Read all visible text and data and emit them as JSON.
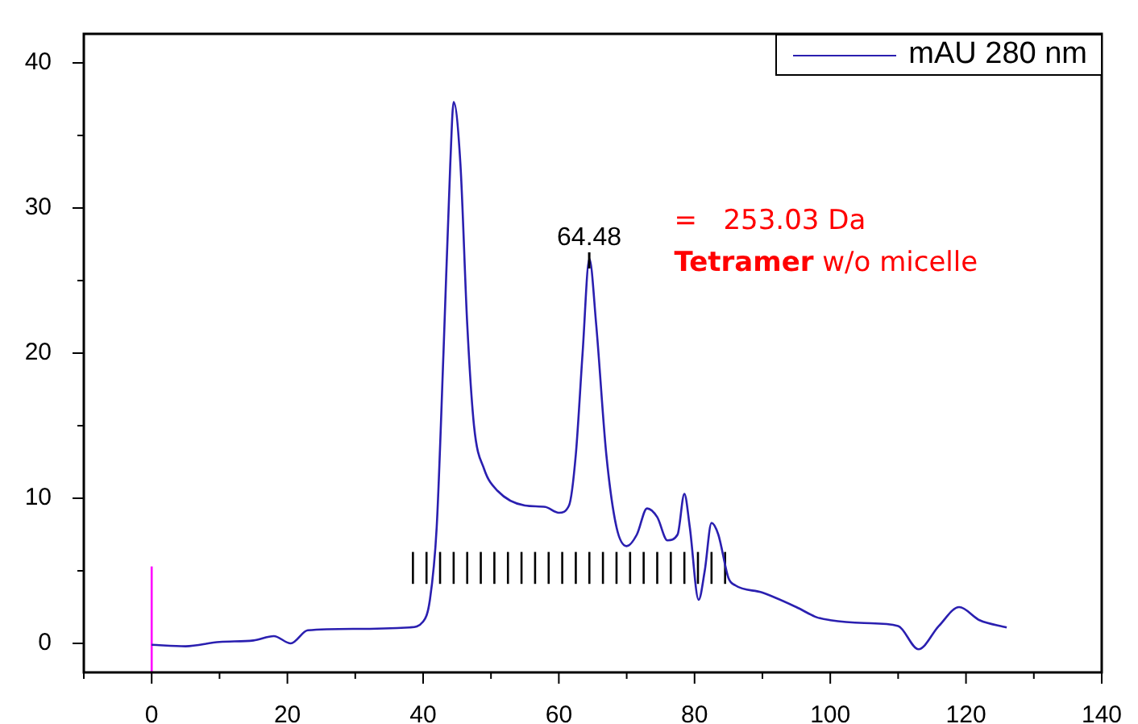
{
  "chart_data": {
    "type": "line",
    "xlim": [
      -10,
      140
    ],
    "xticks": [
      0,
      20,
      40,
      60,
      80,
      100,
      120,
      140
    ],
    "ylim": [
      -2,
      42
    ],
    "yticks": [
      0,
      10,
      20,
      30,
      40
    ],
    "grid": false,
    "legend": "top right",
    "series": [
      {
        "name": "mAU 280 nm",
        "type": "line",
        "color": "#2a1fb0",
        "marker": "none",
        "x": [
          0,
          5,
          10,
          15,
          18,
          20.5,
          23,
          30,
          38,
          40,
          41,
          42,
          43,
          44,
          44.5,
          45.5,
          46.5,
          47.5,
          49,
          51,
          55,
          58,
          60,
          61.5,
          62.5,
          63.5,
          64.5,
          65.5,
          67,
          68.5,
          70,
          71.5,
          73,
          74.5,
          76,
          77.5,
          78.5,
          79.3,
          80.6,
          81.5,
          82.5,
          83.5,
          85,
          86,
          90,
          95,
          98,
          100,
          105,
          110,
          113,
          116,
          119,
          122,
          126
        ],
        "values": [
          -0.1,
          -0.2,
          0.1,
          0.2,
          0.5,
          0,
          0.9,
          1.0,
          1.1,
          1.5,
          3,
          8,
          20,
          33,
          37.3,
          33,
          22,
          15,
          12,
          10.5,
          9.5,
          9.4,
          9,
          9.5,
          13,
          20,
          26.5,
          22,
          13,
          8,
          6.7,
          7.5,
          9.3,
          8.7,
          7.1,
          7.5,
          10.3,
          8,
          3,
          5,
          8.3,
          7.5,
          4.5,
          4,
          3.5,
          2.5,
          1.8,
          1.6,
          1.4,
          1.2,
          -0.4,
          1.2,
          2.5,
          1.6,
          1.1
        ]
      },
      {
        "type": "line",
        "color": "#000000",
        "marker": "none",
        "x": [
          38.5,
          38.5
        ],
        "values": [
          4.1,
          6.3
        ]
      },
      {
        "type": "line",
        "color": "#000000",
        "marker": "none",
        "x": [
          40.5,
          40.5
        ],
        "values": [
          4.1,
          6.3
        ]
      },
      {
        "type": "line",
        "color": "#000000",
        "marker": "none",
        "x": [
          42.5,
          42.5
        ],
        "values": [
          4.1,
          6.3
        ]
      },
      {
        "type": "line",
        "color": "#000000",
        "marker": "none",
        "x": [
          44.5,
          44.5
        ],
        "values": [
          4.1,
          6.3
        ]
      },
      {
        "type": "line",
        "color": "#000000",
        "marker": "none",
        "x": [
          46.5,
          46.5
        ],
        "values": [
          4.1,
          6.3
        ]
      },
      {
        "type": "line",
        "color": "#000000",
        "marker": "none",
        "x": [
          48.5,
          48.5
        ],
        "values": [
          4.1,
          6.3
        ]
      },
      {
        "type": "line",
        "color": "#000000",
        "marker": "none",
        "x": [
          50.5,
          50.5
        ],
        "values": [
          4.1,
          6.3
        ]
      },
      {
        "type": "line",
        "color": "#000000",
        "marker": "none",
        "x": [
          52.5,
          52.5
        ],
        "values": [
          4.1,
          6.3
        ]
      },
      {
        "type": "line",
        "color": "#000000",
        "marker": "none",
        "x": [
          54.5,
          54.5
        ],
        "values": [
          4.1,
          6.3
        ]
      },
      {
        "type": "line",
        "color": "#000000",
        "marker": "none",
        "x": [
          56.5,
          56.5
        ],
        "values": [
          4.1,
          6.3
        ]
      },
      {
        "type": "line",
        "color": "#000000",
        "marker": "none",
        "x": [
          58.5,
          58.5
        ],
        "values": [
          4.1,
          6.3
        ]
      },
      {
        "type": "line",
        "color": "#000000",
        "marker": "none",
        "x": [
          60.5,
          60.5
        ],
        "values": [
          4.1,
          6.3
        ]
      },
      {
        "type": "line",
        "color": "#000000",
        "marker": "none",
        "x": [
          62.5,
          62.5
        ],
        "values": [
          4.1,
          6.3
        ]
      },
      {
        "type": "line",
        "color": "#000000",
        "marker": "none",
        "x": [
          64.5,
          64.5
        ],
        "values": [
          4.1,
          6.3
        ]
      },
      {
        "type": "line",
        "color": "#000000",
        "marker": "none",
        "x": [
          66.5,
          66.5
        ],
        "values": [
          4.1,
          6.3
        ]
      },
      {
        "type": "line",
        "color": "#000000",
        "marker": "none",
        "x": [
          68.5,
          68.5
        ],
        "values": [
          4.1,
          6.3
        ]
      },
      {
        "type": "line",
        "color": "#000000",
        "marker": "none",
        "x": [
          70.5,
          70.5
        ],
        "values": [
          4.1,
          6.3
        ]
      },
      {
        "type": "line",
        "color": "#000000",
        "marker": "none",
        "x": [
          72.5,
          72.5
        ],
        "values": [
          4.1,
          6.3
        ]
      },
      {
        "type": "line",
        "color": "#000000",
        "marker": "none",
        "x": [
          74.5,
          74.5
        ],
        "values": [
          4.1,
          6.3
        ]
      },
      {
        "type": "line",
        "color": "#000000",
        "marker": "none",
        "x": [
          76.5,
          76.5
        ],
        "values": [
          4.1,
          6.3
        ]
      },
      {
        "type": "line",
        "color": "#000000",
        "marker": "none",
        "x": [
          78.5,
          78.5
        ],
        "values": [
          4.1,
          6.3
        ]
      },
      {
        "type": "line",
        "color": "#000000",
        "marker": "none",
        "x": [
          80.5,
          80.5
        ],
        "values": [
          4.1,
          6.3
        ]
      },
      {
        "type": "line",
        "color": "#000000",
        "marker": "none",
        "x": [
          82.5,
          82.5
        ],
        "values": [
          4.1,
          6.3
        ]
      },
      {
        "type": "line",
        "color": "#000000",
        "marker": "none",
        "x": [
          84.5,
          84.5
        ],
        "values": [
          4.1,
          6.3
        ]
      },
      {
        "type": "line",
        "color": "#ff00ff",
        "marker": "none",
        "x": [
          0,
          0
        ],
        "values": [
          -2,
          5.3
        ]
      }
    ],
    "annotations": [
      {
        "text": "64.48",
        "x": 64.48,
        "y": 26.5
      },
      "=   253.03 Da",
      "Tetramer w/o micelle"
    ]
  }
}
